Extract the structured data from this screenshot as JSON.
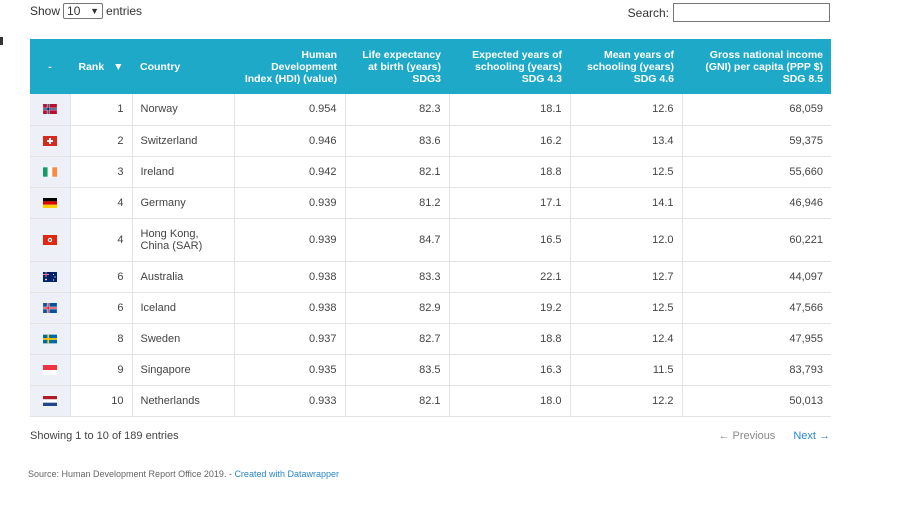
{
  "controls": {
    "show_label": "Show",
    "length_value": "10",
    "entries_label": "entries",
    "search_label": "Search:"
  },
  "table": {
    "headers": {
      "flag": "-",
      "rank": "Rank",
      "sort_indicator": "▼",
      "country": "Country",
      "hdi": "Human Development Index (HDI) (value)",
      "life": "Life expectancy at birth (years) SDG3",
      "expected": "Expected years of schooling (years) SDG 4.3",
      "mean": "Mean years of schooling (years) SDG 4.6",
      "gni": "Gross national income (GNI) per capita (PPP $) SDG 8.5"
    },
    "rows": [
      {
        "flag": "norway-flag",
        "rank": "1",
        "country": "Norway",
        "hdi": "0.954",
        "life": "82.3",
        "expected": "18.1",
        "mean": "12.6",
        "gni": "68,059"
      },
      {
        "flag": "switzerland-flag",
        "rank": "2",
        "country": "Switzerland",
        "hdi": "0.946",
        "life": "83.6",
        "expected": "16.2",
        "mean": "13.4",
        "gni": "59,375"
      },
      {
        "flag": "ireland-flag",
        "rank": "3",
        "country": "Ireland",
        "hdi": "0.942",
        "life": "82.1",
        "expected": "18.8",
        "mean": "12.5",
        "gni": "55,660"
      },
      {
        "flag": "germany-flag",
        "rank": "4",
        "country": "Germany",
        "hdi": "0.939",
        "life": "81.2",
        "expected": "17.1",
        "mean": "14.1",
        "gni": "46,946"
      },
      {
        "flag": "hong-kong-flag",
        "rank": "4",
        "country": "Hong Kong, China (SAR)",
        "hdi": "0.939",
        "life": "84.7",
        "expected": "16.5",
        "mean": "12.0",
        "gni": "60,221"
      },
      {
        "flag": "australia-flag",
        "rank": "6",
        "country": "Australia",
        "hdi": "0.938",
        "life": "83.3",
        "expected": "22.1",
        "mean": "12.7",
        "gni": "44,097"
      },
      {
        "flag": "iceland-flag",
        "rank": "6",
        "country": "Iceland",
        "hdi": "0.938",
        "life": "82.9",
        "expected": "19.2",
        "mean": "12.5",
        "gni": "47,566"
      },
      {
        "flag": "sweden-flag",
        "rank": "8",
        "country": "Sweden",
        "hdi": "0.937",
        "life": "82.7",
        "expected": "18.8",
        "mean": "12.4",
        "gni": "47,955"
      },
      {
        "flag": "singapore-flag",
        "rank": "9",
        "country": "Singapore",
        "hdi": "0.935",
        "life": "83.5",
        "expected": "16.3",
        "mean": "11.5",
        "gni": "83,793"
      },
      {
        "flag": "netherlands-flag",
        "rank": "10",
        "country": "Netherlands",
        "hdi": "0.933",
        "life": "82.1",
        "expected": "18.0",
        "mean": "12.2",
        "gni": "50,013"
      }
    ]
  },
  "footer": {
    "info": "Showing 1 to 10 of 189 entries",
    "previous": "← Previous",
    "next": "Next →"
  },
  "source": {
    "text": "Source: Human Development Report Office 2019. - ",
    "link": "Created with Datawrapper"
  },
  "colors": {
    "header_bg": "#1fa9c8",
    "flag_cell_bg": "#eef0f8",
    "link": "#2a87c8"
  }
}
